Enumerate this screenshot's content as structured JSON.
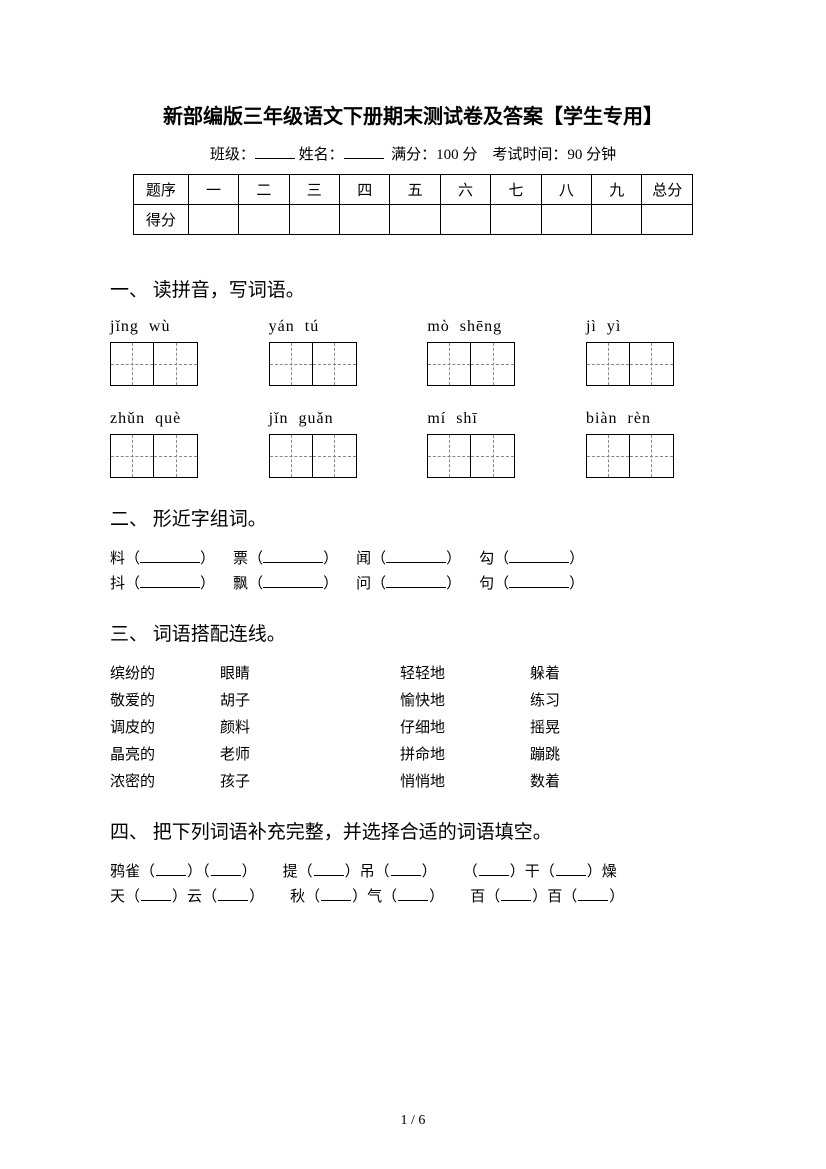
{
  "title": "新部编版三年级语文下册期末测试卷及答案【学生专用】",
  "info": {
    "class_label": "班级：",
    "name_label": "姓名：",
    "full_score_label": "满分：",
    "full_score_value": "100 分",
    "time_label": "考试时间：",
    "time_value": "90 分钟"
  },
  "score_table": {
    "row1_label": "题序",
    "row2_label": "得分",
    "cols": [
      "一",
      "二",
      "三",
      "四",
      "五",
      "六",
      "七",
      "八",
      "九",
      "总分"
    ]
  },
  "q1": {
    "heading": "一、 读拼音，写词语。",
    "rows": [
      [
        {
          "syllables": [
            "jǐng",
            "wù"
          ]
        },
        {
          "syllables": [
            "yán",
            "tú"
          ]
        },
        {
          "syllables": [
            "mò",
            "shēng"
          ]
        },
        {
          "syllables": [
            "jì",
            "yì"
          ]
        }
      ],
      [
        {
          "syllables": [
            "zhǔn",
            "què"
          ]
        },
        {
          "syllables": [
            "jǐn",
            "guǎn"
          ]
        },
        {
          "syllables": [
            "mí",
            "shī"
          ]
        },
        {
          "syllables": [
            "biàn",
            "rèn"
          ]
        }
      ]
    ]
  },
  "q2": {
    "heading": "二、 形近字组词。",
    "rows": [
      [
        "料",
        "票",
        "闻",
        "勾"
      ],
      [
        "抖",
        "飘",
        "问",
        "句"
      ]
    ]
  },
  "q3": {
    "heading": "三、 词语搭配连线。",
    "rows": [
      [
        "缤纷的",
        "眼睛",
        "轻轻地",
        "躲着"
      ],
      [
        "敬爱的",
        "胡子",
        "愉快地",
        "练习"
      ],
      [
        "调皮的",
        "颜料",
        "仔细地",
        "摇晃"
      ],
      [
        "晶亮的",
        "老师",
        "拼命地",
        "蹦跳"
      ],
      [
        "浓密的",
        "孩子",
        "悄悄地",
        "数着"
      ]
    ]
  },
  "q4": {
    "heading": "四、 把下列词语补充完整，并选择合适的词语填空。",
    "rows": [
      [
        {
          "parts": [
            "鸦",
            "雀",
            "（",
            "_",
            "）",
            "（",
            "_",
            "）"
          ]
        },
        {
          "parts": [
            "提",
            "（",
            "_",
            "）",
            "吊",
            "（",
            "_",
            "）"
          ]
        },
        {
          "parts": [
            "（",
            "_",
            "）",
            "干",
            "（",
            "_",
            "）",
            "燥"
          ]
        }
      ],
      [
        {
          "parts": [
            "天",
            "（",
            "_",
            "）",
            "云",
            "（",
            "_",
            "）"
          ]
        },
        {
          "parts": [
            "秋",
            "（",
            "_",
            "）",
            "气",
            "（",
            "_",
            "）"
          ]
        },
        {
          "parts": [
            "百",
            "（",
            "_",
            "）",
            "百",
            "（",
            "_",
            "）"
          ]
        }
      ]
    ]
  },
  "footer": "1 / 6"
}
